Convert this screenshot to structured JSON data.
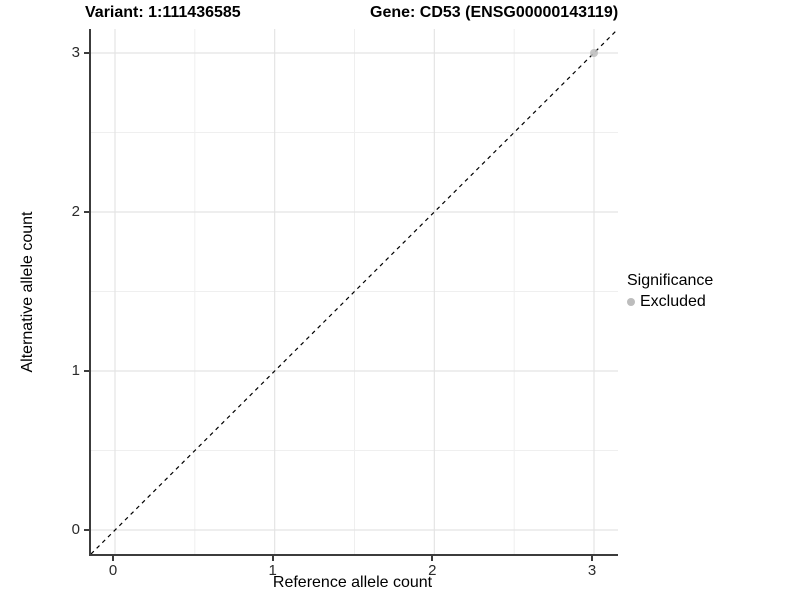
{
  "figure": {
    "title_left": "Variant: 1:111436585",
    "title_right": "Gene: CD53 (ENSG00000143119)"
  },
  "axes": {
    "x_label": "Reference allele count",
    "y_label": "Alternative allele count",
    "x_tick_labels": [
      "0",
      "1",
      "2",
      "3"
    ],
    "y_tick_labels": [
      "0",
      "1",
      "2",
      "3"
    ]
  },
  "legend": {
    "title": "Significance",
    "entries": [
      {
        "label": "Excluded",
        "color": "#bdbdbd"
      }
    ]
  },
  "colors": {
    "background": "#ffffff",
    "grid_major": "#e4e4e4",
    "grid_minor": "#efefef",
    "axis_line": "#3c3c3c",
    "reference_line": "#000000",
    "point_excluded": "#bdbdbd",
    "title_text": "#000000",
    "tick_text": "#2b2b2b"
  },
  "chart_data": {
    "type": "scatter",
    "title": "Variant: 1:111436585   Gene: CD53 (ENSG00000143119)",
    "xlabel": "Reference allele count",
    "ylabel": "Alternative allele count",
    "xlim": [
      -0.15,
      3.15
    ],
    "ylim": [
      -0.15,
      3.15
    ],
    "x_ticks": [
      0,
      1,
      2,
      3
    ],
    "y_ticks": [
      0,
      1,
      2,
      3
    ],
    "minor_ticks": [
      0.5,
      1.5,
      2.5
    ],
    "grid": "major+minor",
    "legend_position": "right",
    "series": [
      {
        "name": "Excluded",
        "color": "#bdbdbd",
        "points": [
          {
            "x": 3,
            "y": 3
          }
        ]
      }
    ],
    "reference_line": {
      "type": "identity y=x",
      "style": "dashed",
      "color": "#000000"
    }
  }
}
